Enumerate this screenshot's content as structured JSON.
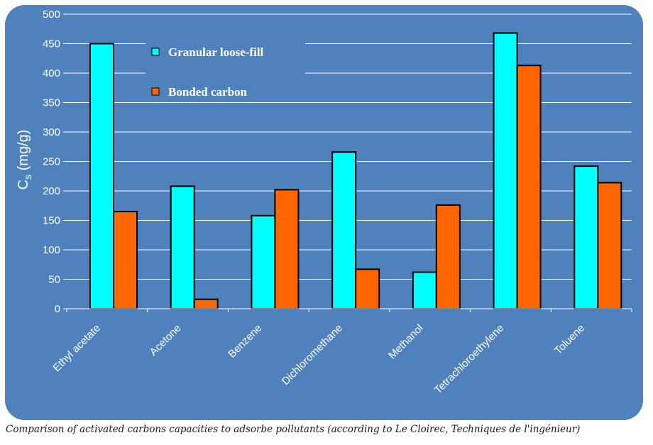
{
  "chart_data": {
    "type": "bar",
    "categories": [
      "Ethyl acetate",
      "Acetone",
      "Benzene",
      "Dichloromethane",
      "Methanol",
      "Tetrachloroethylene",
      "Toluene"
    ],
    "series": [
      {
        "name": "Granular loose-fill",
        "color": "#00FFFF",
        "values": [
          450,
          208,
          158,
          266,
          62,
          468,
          242
        ]
      },
      {
        "name": "Bonded carbon",
        "color": "#FF6600",
        "values": [
          165,
          16,
          202,
          67,
          176,
          413,
          214
        ]
      }
    ],
    "ylabel_main": "C",
    "ylabel_sub": "s",
    "ylabel_unit": " (mg/g)",
    "ylim": [
      0,
      500
    ],
    "yticks": [
      "0",
      "50",
      "100",
      "150",
      "200",
      "250",
      "300",
      "350",
      "400",
      "450",
      "500"
    ],
    "grid": true,
    "legend_position": "top-left",
    "background_color": "#4F81BD"
  },
  "caption": "Comparison of activated carbons capacities to adsorbe pollutants (according to Le Cloirec, Techniques de l'ingénieur)"
}
